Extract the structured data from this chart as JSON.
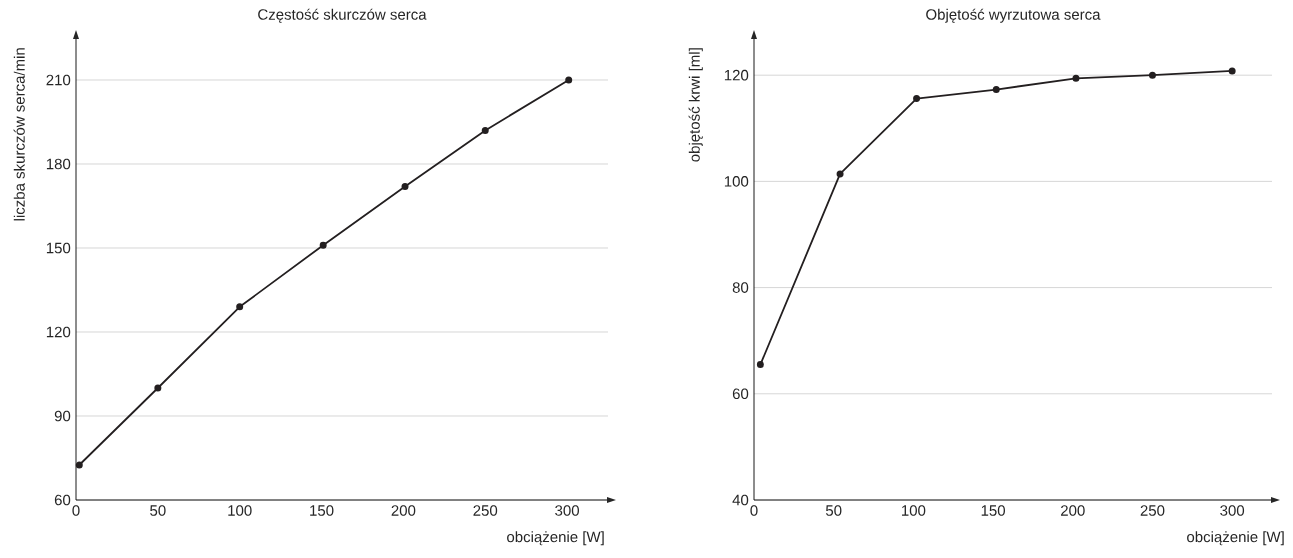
{
  "chart_data": [
    {
      "type": "line",
      "title": "Częstość skurczów serca",
      "xlabel": "obciążenie [W]",
      "ylabel": "liczba skurczów serca/min",
      "x": [
        2,
        50,
        100,
        151,
        201,
        250,
        301
      ],
      "series": [
        {
          "color": "#231f20",
          "values": [
            72.5,
            100,
            129,
            151,
            172,
            192,
            210
          ]
        }
      ],
      "xlim": [
        0,
        325
      ],
      "ylim": [
        60,
        225
      ],
      "xticks": [
        0,
        50,
        100,
        150,
        200,
        250,
        300
      ],
      "yticks": [
        60,
        90,
        120,
        150,
        180,
        210
      ],
      "grid": "y",
      "marker": "circle"
    },
    {
      "type": "line",
      "title": "Objętość wyrzutowa serca",
      "xlabel": "obciążenie [W]",
      "ylabel": "objętość krwi [ml]",
      "x": [
        4,
        54,
        102,
        152,
        202,
        250,
        300
      ],
      "series": [
        {
          "color": "#231f20",
          "values": [
            65.5,
            101.4,
            115.6,
            117.3,
            119.4,
            120,
            120.8
          ]
        }
      ],
      "xlim": [
        0,
        325
      ],
      "ylim": [
        40,
        127
      ],
      "xticks": [
        0,
        50,
        100,
        150,
        200,
        250,
        300
      ],
      "yticks": [
        40,
        60,
        80,
        100,
        120
      ],
      "grid": "y",
      "marker": "circle"
    }
  ]
}
